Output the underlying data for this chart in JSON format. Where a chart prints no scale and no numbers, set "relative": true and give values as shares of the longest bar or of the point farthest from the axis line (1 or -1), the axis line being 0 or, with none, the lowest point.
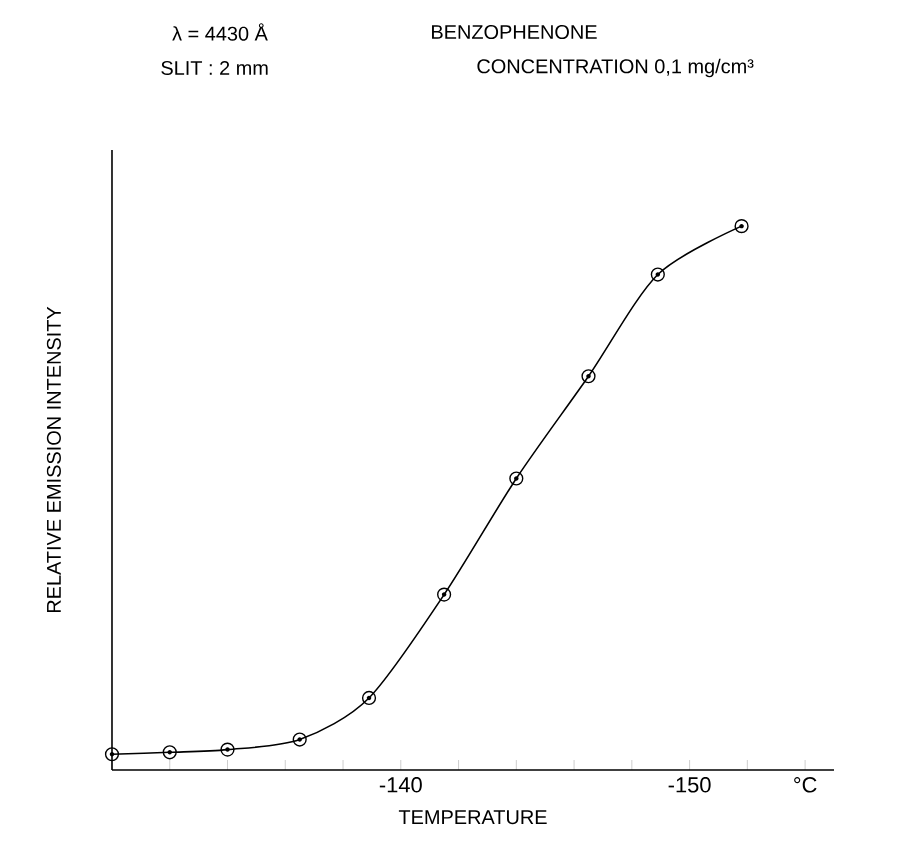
{
  "chart_data": {
    "type": "line",
    "relative": true,
    "xlabel": "TEMPERATURE",
    "ylabel": "RELATIVE EMISSION INTENSITY",
    "annotations": [
      "λ = 4430 Å",
      "BENZOPHENONE",
      "SLIT : 2 mm",
      "CONCENTRATION  0,1 mg/cm³"
    ],
    "xlim": [
      -130,
      -155
    ],
    "xticks": [
      {
        "value": -130,
        "label": null
      },
      {
        "value": -132,
        "label": null
      },
      {
        "value": -134,
        "label": null
      },
      {
        "value": -136,
        "label": null
      },
      {
        "value": -138,
        "label": null
      },
      -140,
      {
        "value": -142,
        "label": null
      },
      {
        "value": -144,
        "label": null
      },
      {
        "value": -146,
        "label": null
      },
      {
        "value": -148,
        "label": null
      },
      -150,
      {
        "value": -152,
        "label": null
      },
      {
        "value": -154,
        "label": "°C"
      }
    ],
    "series": [
      {
        "color": "#000000",
        "marker": "circle",
        "line_style": "solid",
        "x": [
          -130,
          -132,
          -134,
          -136.5,
          -138.9,
          -141.5,
          -144,
          -146.5,
          -148.9,
          -151.8
        ],
        "values": [
          0.029,
          0.0325,
          0.0375,
          0.056,
          0.1325,
          0.3225,
          0.536,
          0.724,
          0.911,
          1.0
        ]
      }
    ]
  }
}
